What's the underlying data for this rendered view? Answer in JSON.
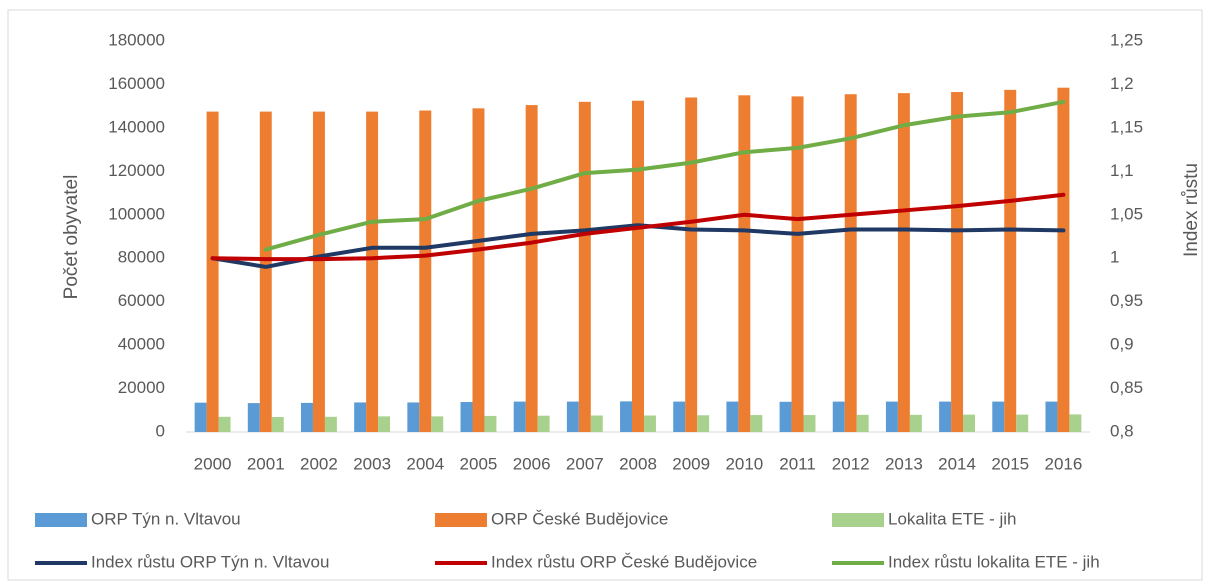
{
  "chart_data": {
    "type": "bar",
    "categories": [
      "2000",
      "2001",
      "2002",
      "2003",
      "2004",
      "2005",
      "2006",
      "2007",
      "2008",
      "2009",
      "2010",
      "2011",
      "2012",
      "2013",
      "2014",
      "2015",
      "2016"
    ],
    "ylabel": "Počet obyvatel",
    "y2label": "Index růstu",
    "ylim": [
      0,
      180000
    ],
    "yticks": [
      0,
      20000,
      40000,
      60000,
      80000,
      100000,
      120000,
      140000,
      160000,
      180000
    ],
    "y2lim": [
      0.8,
      1.25
    ],
    "y2ticks": [
      {
        "value": 0.8,
        "label": "0,8"
      },
      {
        "value": 0.85,
        "label": "0,85"
      },
      {
        "value": 0.9,
        "label": "0,9"
      },
      {
        "value": 0.95,
        "label": "0,95"
      },
      1,
      {
        "value": 1.05,
        "label": "1,05"
      },
      {
        "value": 1.1,
        "label": "1,1"
      },
      {
        "value": 1.15,
        "label": "1,15"
      },
      {
        "value": 1.2,
        "label": "1,2"
      },
      {
        "value": 1.25,
        "label": "1,25"
      }
    ],
    "grid": false,
    "legend": "bottom",
    "series": [
      {
        "name": "ORP Týn n. Vltavou",
        "type": "bar",
        "color": "#5b9bd5",
        "values": [
          13500,
          13300,
          13400,
          13600,
          13600,
          13800,
          14000,
          14000,
          14100,
          14000,
          14000,
          13900,
          14000,
          14000,
          14000,
          14000,
          14000
        ]
      },
      {
        "name": "ORP České Budějovice",
        "type": "bar",
        "color": "#ed7d31",
        "values": [
          147500,
          147500,
          147500,
          147500,
          148000,
          149000,
          150500,
          152000,
          152500,
          154000,
          155000,
          154500,
          155500,
          156000,
          156500,
          157500,
          158500
        ]
      },
      {
        "name": "Lokalita  ETE - jih",
        "type": "bar",
        "color": "#a9d18e",
        "values": [
          7000,
          6900,
          7000,
          7200,
          7200,
          7400,
          7500,
          7600,
          7600,
          7700,
          7800,
          7800,
          7900,
          7900,
          8000,
          8000,
          8100
        ]
      },
      {
        "name": "Index růstu ORP Týn n. Vltavou",
        "type": "line",
        "axis": "y2",
        "color": "#1f3864",
        "values": [
          1.0,
          0.99,
          1.002,
          1.012,
          1.012,
          1.02,
          1.028,
          1.032,
          1.038,
          1.033,
          1.032,
          1.028,
          1.033,
          1.033,
          1.032,
          1.033,
          1.032
        ]
      },
      {
        "name": "Index růstu ORP České Budějovice",
        "type": "line",
        "axis": "y2",
        "color": "#c00000",
        "values": [
          1.0,
          0.999,
          0.999,
          1.0,
          1.003,
          1.01,
          1.018,
          1.028,
          1.035,
          1.042,
          1.05,
          1.045,
          1.05,
          1.055,
          1.06,
          1.066,
          1.073
        ]
      },
      {
        "name": "Index růstu lokalita ETE - jih",
        "type": "line",
        "axis": "y2",
        "color": "#70ad47",
        "values": [
          null,
          1.01,
          1.027,
          1.042,
          1.045,
          1.066,
          1.08,
          1.098,
          1.102,
          1.11,
          1.122,
          1.127,
          1.138,
          1.153,
          1.163,
          1.168,
          1.18
        ]
      }
    ]
  }
}
